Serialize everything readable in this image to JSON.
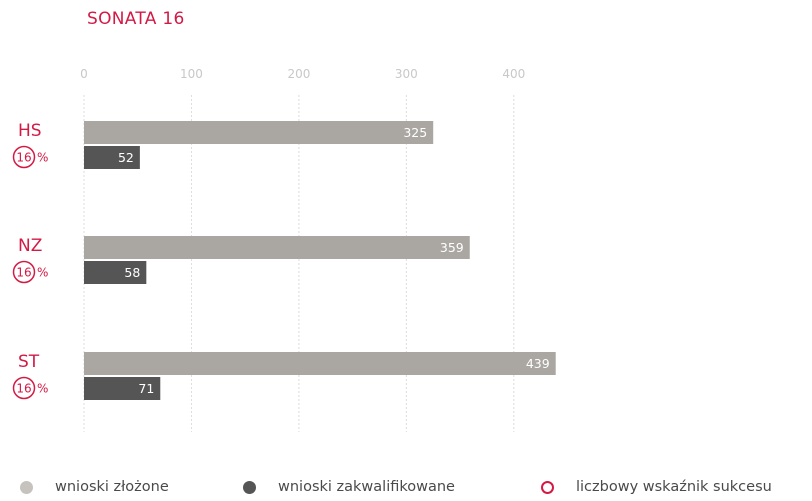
{
  "chart_data": {
    "type": "bar",
    "orientation": "horizontal",
    "title": "SONATA 16",
    "xlim": [
      0,
      440
    ],
    "xticks": [
      0,
      100,
      200,
      300,
      400
    ],
    "grid": true,
    "legend_position": "bottom",
    "categories": [
      "HS",
      "NZ",
      "ST"
    ],
    "success_rate_percent": [
      16,
      16,
      16
    ],
    "percent_sign": "%",
    "series": [
      {
        "name": "wnioski złożone",
        "values": [
          325,
          359,
          439
        ],
        "color": "#aaa6a2"
      },
      {
        "name": "wnioski zakwalifikowane",
        "values": [
          52,
          58,
          71
        ],
        "color": "#555555"
      }
    ],
    "legend_rate_label": "liczbowy wskaźnik sukcesu",
    "accent_color": "#d31a45"
  }
}
